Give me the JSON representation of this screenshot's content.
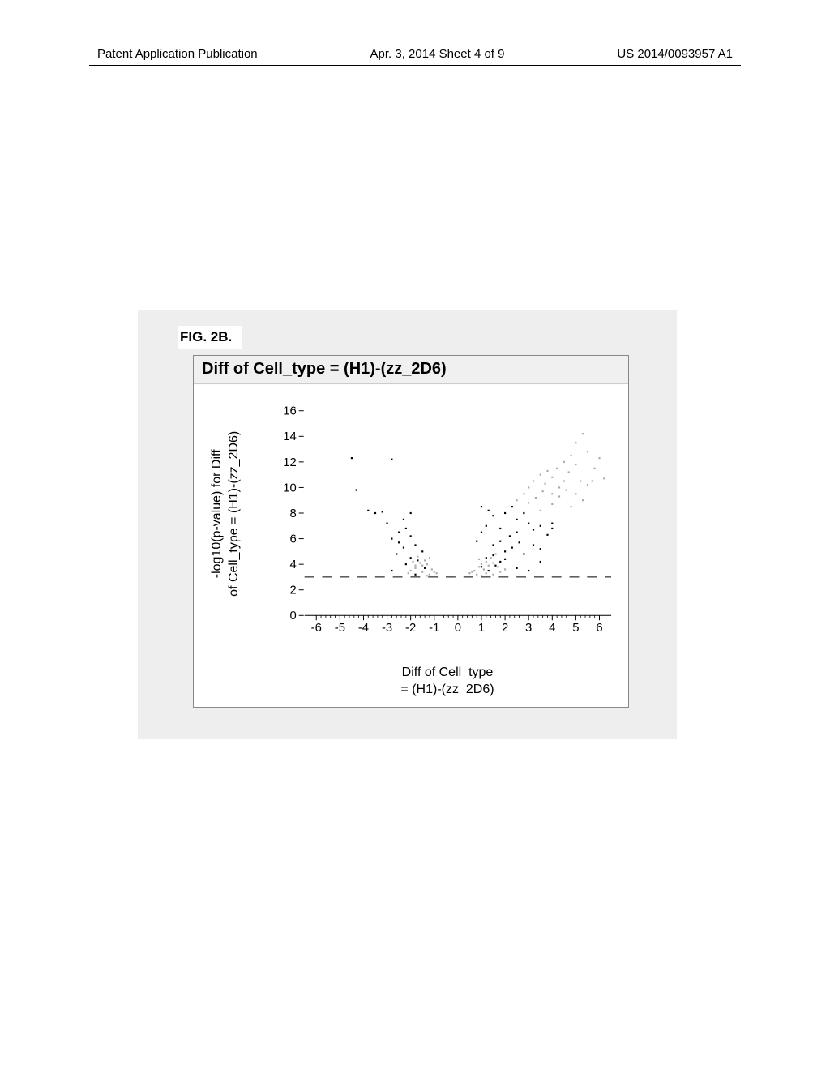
{
  "header": {
    "left": "Patent Application Publication",
    "center": "Apr. 3, 2014  Sheet 4 of 9",
    "right": "US 2014/0093957 A1"
  },
  "figure_label": "FIG. 2B.",
  "chart": {
    "type": "scatter",
    "title": "Diff of Cell_type = (H1)-(zz_2D6)",
    "ylabel_line1": "-log10(p-value) for Diff",
    "ylabel_line2": "of Cell_type = (H1)-(zz_2D6)",
    "xlabel_line1": "Diff of Cell_type",
    "xlabel_line2": "= (H1)-(zz_2D6)",
    "xlim": [
      -6.5,
      6.5
    ],
    "ylim": [
      0,
      17
    ],
    "xticks": [
      -6,
      -5,
      -4,
      -3,
      -2,
      -1,
      0,
      1,
      2,
      3,
      4,
      5,
      6
    ],
    "yticks": [
      0,
      2,
      4,
      6,
      8,
      10,
      12,
      14,
      16
    ],
    "ytick_step": 2,
    "background_color": "#ffffff",
    "axis_color": "#000000",
    "threshold_line_y": 3,
    "threshold_line_style": "dashed",
    "threshold_line_color": "#000000",
    "tick_fontsize": 15,
    "label_fontsize": 16,
    "title_fontsize": 20,
    "marker_size": 2.2,
    "series": [
      {
        "name": "dark_points",
        "color": "#000000",
        "points": [
          [
            -4.5,
            12.3
          ],
          [
            -2.8,
            12.2
          ],
          [
            -4.3,
            9.8
          ],
          [
            -3.8,
            8.2
          ],
          [
            -3.5,
            8.0
          ],
          [
            -3.2,
            8.1
          ],
          [
            -2.0,
            8.0
          ],
          [
            -3.0,
            7.2
          ],
          [
            -2.5,
            6.5
          ],
          [
            -2.2,
            6.8
          ],
          [
            -2.0,
            6.2
          ],
          [
            -1.8,
            5.5
          ],
          [
            -1.5,
            5.0
          ],
          [
            -2.3,
            5.3
          ],
          [
            -2.6,
            4.8
          ],
          [
            -2.0,
            4.5
          ],
          [
            -2.2,
            4.0
          ],
          [
            -1.7,
            4.3
          ],
          [
            -1.4,
            3.7
          ],
          [
            -2.8,
            3.5
          ],
          [
            -1.8,
            3.2
          ],
          [
            -2.8,
            6.0
          ],
          [
            -2.3,
            7.5
          ],
          [
            -2.5,
            5.7
          ],
          [
            1.0,
            8.5
          ],
          [
            1.3,
            8.2
          ],
          [
            1.5,
            7.8
          ],
          [
            1.2,
            7.0
          ],
          [
            1.8,
            6.8
          ],
          [
            2.0,
            8.0
          ],
          [
            2.3,
            8.5
          ],
          [
            2.5,
            7.5
          ],
          [
            2.8,
            8.0
          ],
          [
            3.0,
            7.2
          ],
          [
            2.2,
            6.2
          ],
          [
            2.5,
            6.5
          ],
          [
            1.5,
            5.5
          ],
          [
            1.8,
            5.8
          ],
          [
            2.0,
            5.0
          ],
          [
            2.3,
            5.3
          ],
          [
            2.6,
            5.7
          ],
          [
            1.2,
            4.5
          ],
          [
            1.5,
            4.7
          ],
          [
            1.8,
            4.2
          ],
          [
            2.0,
            4.4
          ],
          [
            1.0,
            3.8
          ],
          [
            1.3,
            3.5
          ],
          [
            1.6,
            3.9
          ],
          [
            2.8,
            4.8
          ],
          [
            3.2,
            6.7
          ],
          [
            3.5,
            7.0
          ],
          [
            4.0,
            7.2
          ],
          [
            4.0,
            6.8
          ],
          [
            3.8,
            6.3
          ],
          [
            3.2,
            5.5
          ],
          [
            3.5,
            5.2
          ],
          [
            2.5,
            3.7
          ],
          [
            3.0,
            3.5
          ],
          [
            3.5,
            4.2
          ],
          [
            0.8,
            5.8
          ],
          [
            1.0,
            6.5
          ]
        ]
      },
      {
        "name": "gray_points",
        "color": "#aaaaaa",
        "points": [
          [
            -2.0,
            3.5
          ],
          [
            -1.8,
            3.7
          ],
          [
            -1.5,
            3.9
          ],
          [
            -1.3,
            4.0
          ],
          [
            -1.2,
            3.2
          ],
          [
            -1.0,
            3.4
          ],
          [
            -1.6,
            4.1
          ],
          [
            -1.4,
            4.3
          ],
          [
            -1.2,
            4.5
          ],
          [
            -1.9,
            4.2
          ],
          [
            -1.7,
            4.6
          ],
          [
            -1.1,
            3.6
          ],
          [
            -0.9,
            3.3
          ],
          [
            -1.5,
            3.4
          ],
          [
            -2.1,
            3.3
          ],
          [
            -1.3,
            3.1
          ],
          [
            -1.8,
            3.9
          ],
          [
            0.5,
            3.3
          ],
          [
            0.7,
            3.5
          ],
          [
            0.9,
            3.8
          ],
          [
            1.0,
            4.0
          ],
          [
            1.2,
            4.2
          ],
          [
            0.8,
            3.2
          ],
          [
            1.1,
            3.6
          ],
          [
            1.3,
            3.9
          ],
          [
            1.5,
            4.1
          ],
          [
            0.6,
            3.4
          ],
          [
            1.7,
            3.8
          ],
          [
            0.9,
            4.4
          ],
          [
            1.4,
            4.5
          ],
          [
            1.6,
            4.8
          ],
          [
            1.0,
            3.1
          ],
          [
            1.8,
            3.4
          ],
          [
            2.0,
            3.6
          ],
          [
            1.2,
            3.3
          ],
          [
            1.5,
            3.2
          ],
          [
            2.5,
            9.0
          ],
          [
            2.8,
            9.5
          ],
          [
            3.0,
            10.0
          ],
          [
            3.2,
            10.5
          ],
          [
            3.5,
            11.0
          ],
          [
            3.8,
            11.3
          ],
          [
            3.3,
            9.2
          ],
          [
            3.6,
            9.7
          ],
          [
            3.0,
            8.8
          ],
          [
            4.0,
            10.8
          ],
          [
            4.2,
            11.5
          ],
          [
            4.5,
            12.0
          ],
          [
            3.7,
            10.3
          ],
          [
            4.0,
            9.5
          ],
          [
            4.3,
            10.0
          ],
          [
            5.0,
            13.5
          ],
          [
            5.3,
            14.2
          ],
          [
            4.8,
            12.5
          ],
          [
            5.5,
            12.8
          ],
          [
            4.5,
            10.5
          ],
          [
            4.7,
            11.2
          ],
          [
            5.0,
            11.8
          ],
          [
            5.2,
            10.5
          ],
          [
            4.0,
            8.7
          ],
          [
            4.3,
            9.3
          ],
          [
            4.6,
            9.8
          ],
          [
            3.5,
            8.2
          ],
          [
            5.8,
            11.5
          ],
          [
            6.0,
            12.3
          ],
          [
            5.5,
            10.2
          ],
          [
            5.0,
            9.5
          ],
          [
            5.3,
            9.0
          ],
          [
            4.8,
            8.5
          ],
          [
            6.2,
            10.7
          ],
          [
            5.7,
            10.5
          ]
        ]
      }
    ]
  }
}
